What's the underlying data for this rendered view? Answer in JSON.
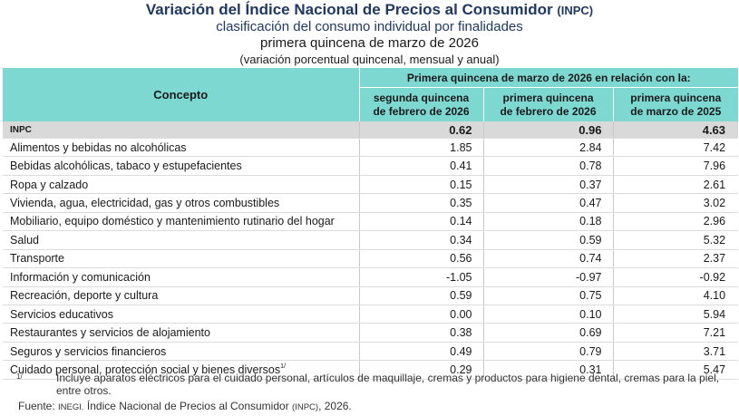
{
  "title": {
    "main": "Variación del Índice Nacional de Precios al Consumidor",
    "abbr": "(INPC)",
    "subtitle": "clasificación del consumo individual por finalidades",
    "period": "primera quincena de marzo de 2026",
    "units": "(variación porcentual quincenal, mensual y anual)"
  },
  "table": {
    "concept_header": "Concepto",
    "group_header": "Primera quincena de marzo de 2026 en relación con la:",
    "columns": [
      {
        "line1": "segunda quincena",
        "line2": "de febrero de 2026"
      },
      {
        "line1": "primera quincena",
        "line2": "de febrero de 2026"
      },
      {
        "line1": "primera quincena",
        "line2": "de marzo de 2025"
      }
    ],
    "rows": [
      {
        "label": "INPC",
        "v1": "0.62",
        "v2": "0.96",
        "v3": "4.63"
      },
      {
        "label": "Alimentos y bebidas no alcohólicas",
        "v1": "1.85",
        "v2": "2.84",
        "v3": "7.42"
      },
      {
        "label": "Bebidas alcohólicas, tabaco y estupefacientes",
        "v1": "0.41",
        "v2": "0.78",
        "v3": "7.96"
      },
      {
        "label": "Ropa y calzado",
        "v1": "0.15",
        "v2": "0.37",
        "v3": "2.61"
      },
      {
        "label": "Vivienda, agua, electricidad, gas y otros combustibles",
        "v1": "0.35",
        "v2": "0.47",
        "v3": "3.02"
      },
      {
        "label": "Mobiliario, equipo doméstico y mantenimiento rutinario del hogar",
        "v1": "0.14",
        "v2": "0.18",
        "v3": "2.96"
      },
      {
        "label": "Salud",
        "v1": "0.34",
        "v2": "0.59",
        "v3": "5.32"
      },
      {
        "label": "Transporte",
        "v1": "0.56",
        "v2": "0.74",
        "v3": "2.37"
      },
      {
        "label": "Información y comunicación",
        "v1": "-1.05",
        "v2": "-0.97",
        "v3": "-0.92"
      },
      {
        "label": "Recreación, deporte y cultura",
        "v1": "0.59",
        "v2": "0.75",
        "v3": "4.10"
      },
      {
        "label": "Servicios educativos",
        "v1": "0.00",
        "v2": "0.10",
        "v3": "5.94"
      },
      {
        "label": "Restaurantes y servicios de alojamiento",
        "v1": "0.38",
        "v2": "0.69",
        "v3": "7.21"
      },
      {
        "label": "Seguros y servicios financieros",
        "v1": "0.49",
        "v2": "0.79",
        "v3": "3.71"
      },
      {
        "label": "Cuidado personal, protección social y bienes diversos",
        "v1": "0.29",
        "v2": "0.31",
        "v3": "5.47",
        "sup": "1/"
      }
    ]
  },
  "footnote": {
    "marker": "1/",
    "text": "Incluye aparatos eléctricos para el cuidado personal, artículos de maquillaje, cremas y productos para higiene dental, cremas para la piel, entre otros."
  },
  "source": {
    "prefix": "Fuente:",
    "org": "INEGI.",
    "text": "Índice Nacional de Precios al Consumidor",
    "abbr": "(INPC)",
    "year": ", 2026."
  },
  "colors": {
    "header_bg": "#7dd8d2",
    "title_color": "#1f3864",
    "highlight_row": "#d9d9d9"
  }
}
